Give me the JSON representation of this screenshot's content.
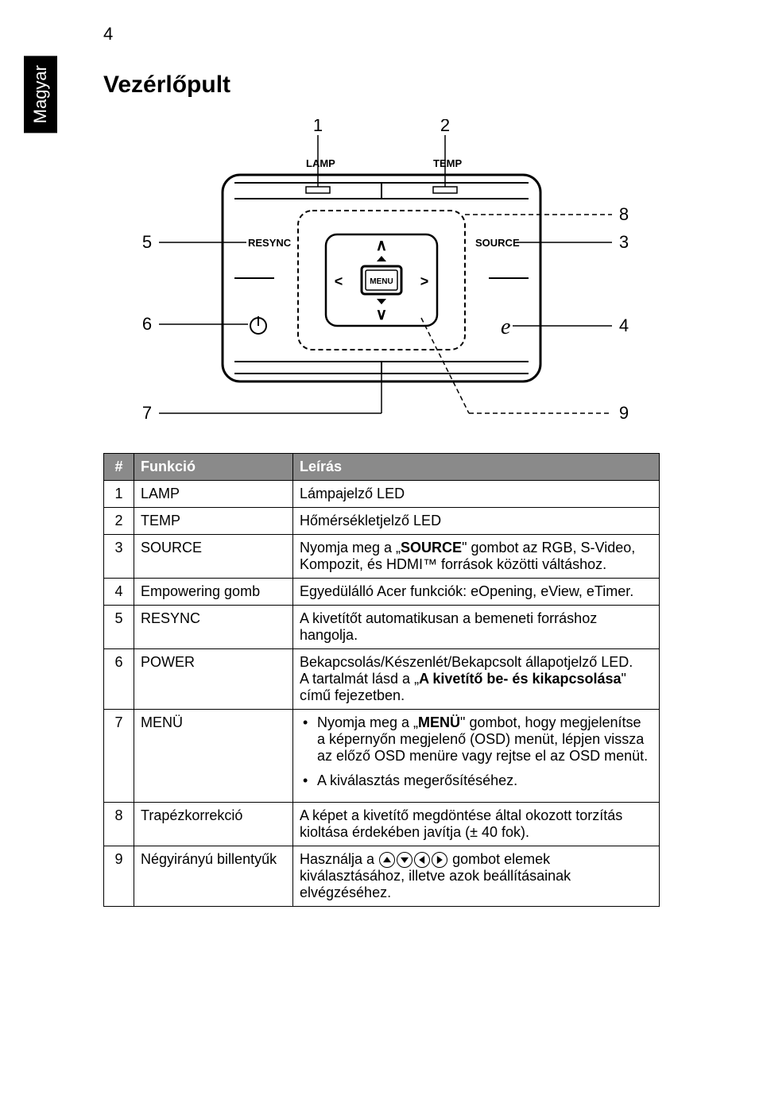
{
  "page_number": "4",
  "side_tab": "Magyar",
  "title": "Vezérlőpult",
  "diagram": {
    "callouts": [
      "1",
      "2",
      "3",
      "4",
      "5",
      "6",
      "7",
      "8",
      "9"
    ],
    "labels": {
      "lamp": "LAMP",
      "temp": "TEMP",
      "resync": "RESYNC",
      "source": "SOURCE",
      "menu": "MENU"
    },
    "callout_font_size": 22,
    "label_font_size": 13,
    "stroke": "#000000",
    "stroke_width": 2,
    "dash": "6,4"
  },
  "table": {
    "headers": [
      "#",
      "Funkció",
      "Leírás"
    ],
    "header_bg": "#8a8a8a",
    "header_fg": "#ffffff",
    "border_color": "#000000",
    "font_size": 18,
    "rows": [
      {
        "n": "1",
        "func": "LAMP",
        "desc_plain": "Lámpajelző LED"
      },
      {
        "n": "2",
        "func": "TEMP",
        "desc_plain": "Hőmérsékletjelző LED"
      },
      {
        "n": "3",
        "func": "SOURCE",
        "desc_html": "Nyomja meg a „<b>SOURCE</b>\" gombot az RGB, S-Video, Kompozit, és HDMI™ források közötti váltáshoz."
      },
      {
        "n": "4",
        "func": "Empowering gomb",
        "desc_plain": "Egyedülálló Acer funkciók: eOpening, eView, eTimer."
      },
      {
        "n": "5",
        "func": "RESYNC",
        "desc_plain": "A kivetítőt automatikusan a bemeneti forráshoz hangolja."
      },
      {
        "n": "6",
        "func": "POWER",
        "desc_html": "Bekapcsolás/Készenlét/Bekapcsolt állapotjelző LED.<br>A tartalmát lásd a „<b>A kivetítő be- és kikapcsolása</b>\" című fejezetben."
      },
      {
        "n": "7",
        "func": "MENÜ",
        "desc_bullets": [
          "Nyomja meg a „<b>MENÜ</b>\" gombot, hogy megjelenítse a képernyőn megjelenő (OSD) menüt, lépjen vissza az előző OSD menüre vagy rejtse el az OSD menüt.",
          "A kiválasztás megerősítéséhez."
        ]
      },
      {
        "n": "8",
        "func": "Trapézkorrekció",
        "desc_plain": "A képet a kivetítő megdöntése által okozott torzítás kioltása érdekében javítja (± 40 fok)."
      },
      {
        "n": "9",
        "func": "Négyirányú billentyűk",
        "desc_arrows": {
          "prefix": "Használja a ",
          "suffix": " gombot elemek kiválasztásához, illetve azok beállításainak elvégzéséhez."
        }
      }
    ]
  }
}
